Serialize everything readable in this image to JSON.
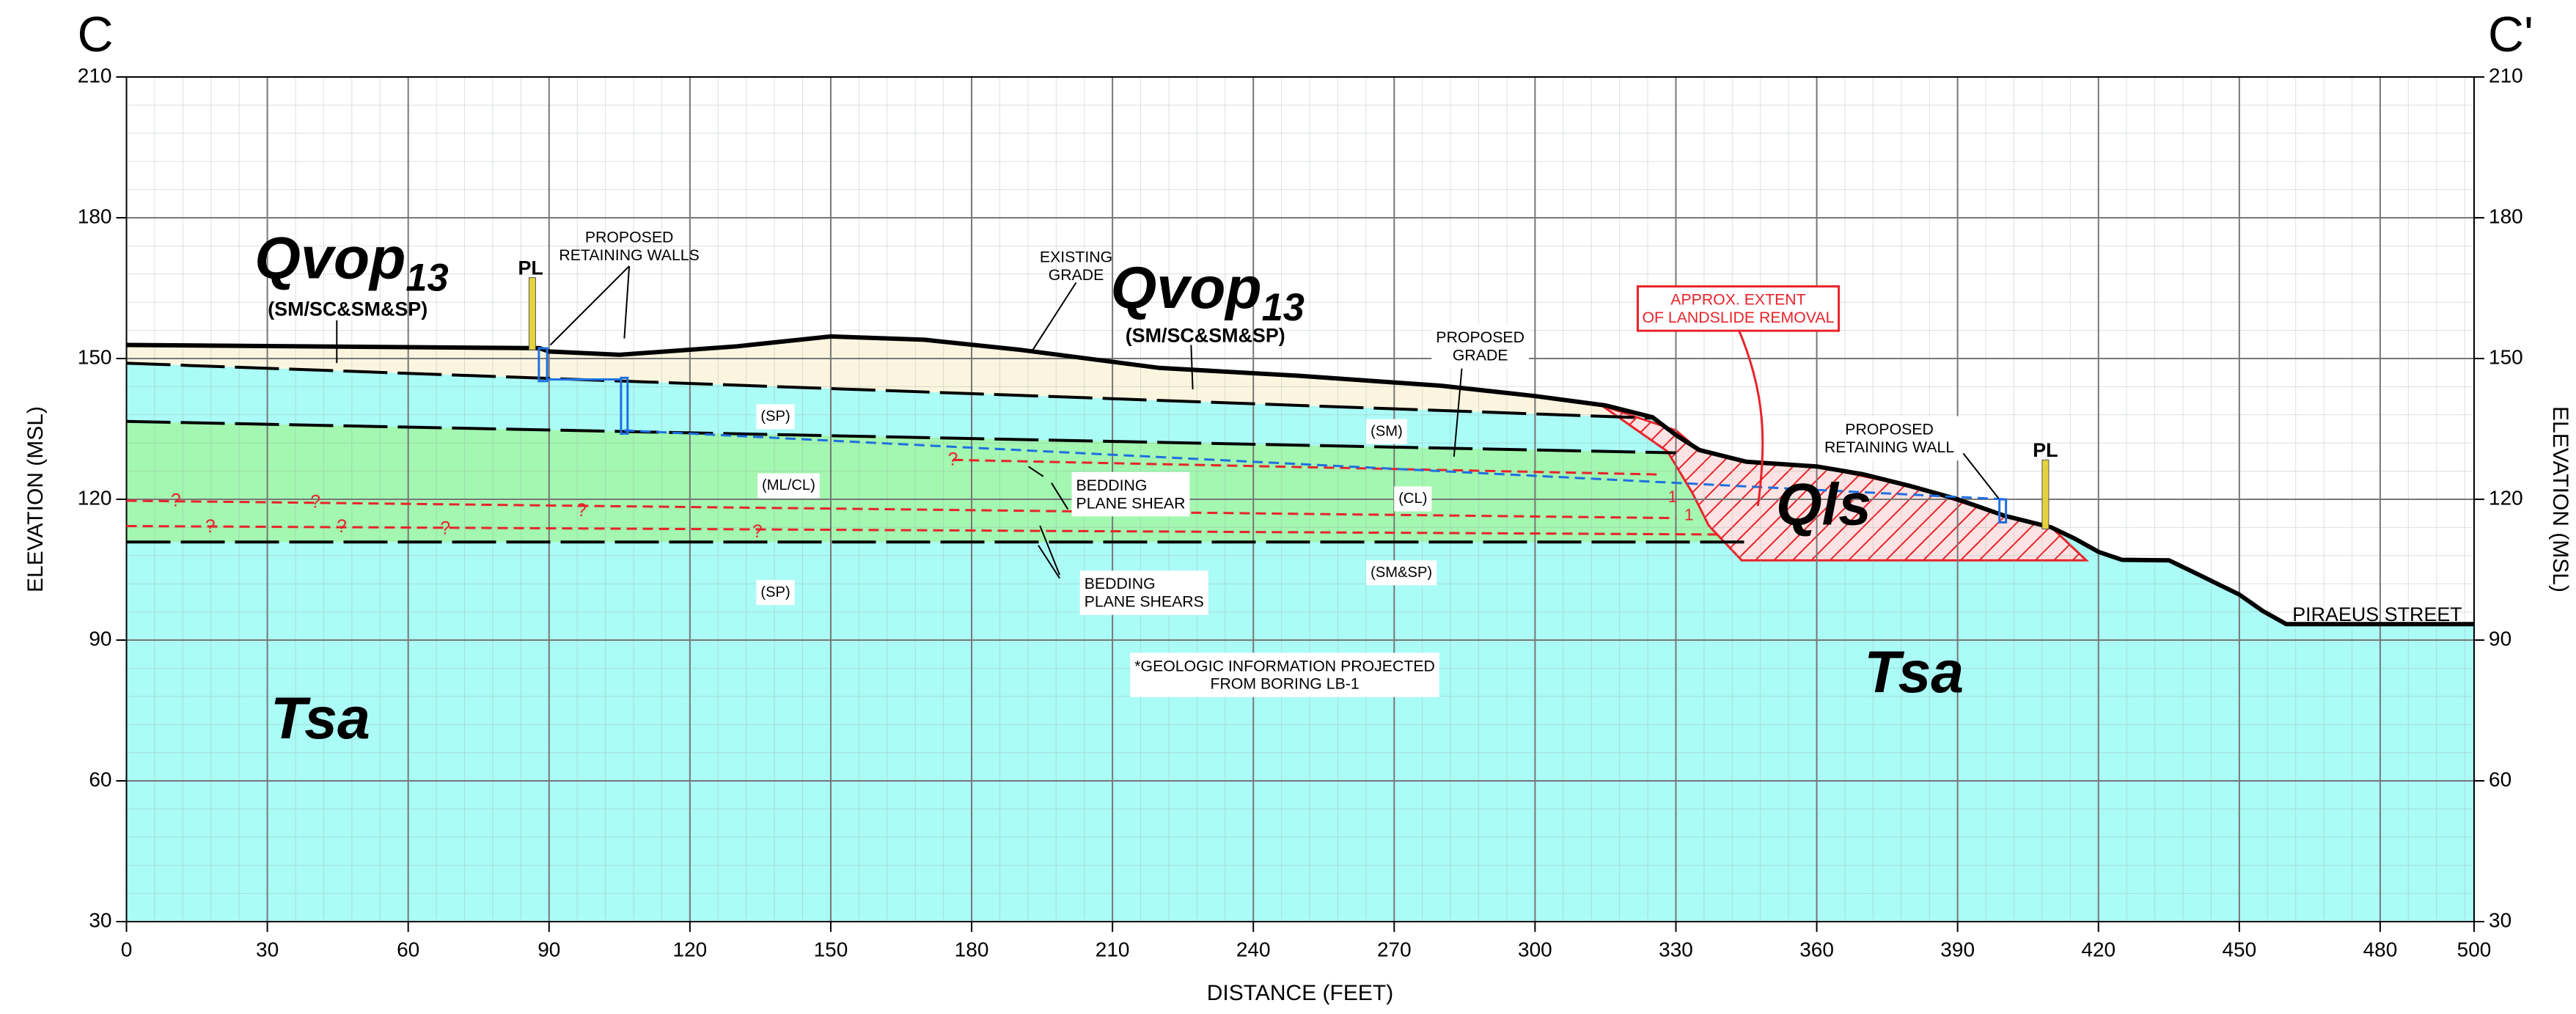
{
  "chart_data": {
    "type": "cross-section",
    "title_left": "C",
    "title_right": "C'",
    "xlabel": "DISTANCE (FEET)",
    "ylabel": "ELEVATION (MSL)",
    "xlim": [
      0,
      500
    ],
    "ylim": [
      30,
      210
    ],
    "xticks": [
      0,
      30,
      60,
      90,
      120,
      150,
      180,
      210,
      240,
      270,
      300,
      330,
      360,
      390,
      420,
      450,
      480,
      500
    ],
    "yticks": [
      30,
      60,
      90,
      120,
      150,
      180,
      210
    ],
    "grid": true,
    "ground_fill": "#abfbf6",
    "polygons": [
      {
        "color": "#fbf5df",
        "x": [
          0,
          88,
          90,
          105,
          130,
          150,
          170,
          190,
          220,
          250,
          280,
          300,
          315,
          325,
          325,
          0
        ],
        "values": [
          152.9,
          152.2,
          151.5,
          150.8,
          152.6,
          154.7,
          154,
          151.9,
          148,
          146.3,
          144.2,
          142,
          140,
          137.5,
          137.3,
          149
        ]
      },
      {
        "color": "#a3f7b0",
        "x": [
          0,
          330,
          345,
          0
        ],
        "values": [
          136.6,
          129.9,
          110.9,
          110.9
        ]
      },
      {
        "color": "#e8232a",
        "hatch": true,
        "x": [
          314.2,
          330,
          334.9,
          345,
          360,
          380,
          400,
          410,
          417.4,
          344,
          337,
          333.5,
          328.2
        ],
        "values": [
          140,
          134.7,
          130.5,
          128,
          127,
          122.8,
          116.5,
          114,
          107,
          107,
          114.4,
          121.4,
          130.2
        ]
      }
    ],
    "series": [
      {
        "color": "#000000",
        "style": "solid",
        "x": [
          0,
          88,
          90,
          105,
          130,
          150,
          170,
          190,
          220,
          250,
          280,
          300,
          315,
          325,
          330,
          335,
          345,
          360,
          370,
          380,
          390,
          400,
          410,
          415,
          420,
          425,
          435,
          440,
          450,
          455,
          460,
          500
        ],
        "values": [
          152.9,
          152.2,
          151.5,
          150.8,
          152.6,
          154.7,
          154,
          151.9,
          148,
          146.3,
          144.2,
          142,
          140,
          137.5,
          133.7,
          130.5,
          128,
          127,
          125.3,
          122.8,
          120,
          116.5,
          114,
          111.6,
          108.8,
          107.1,
          107,
          104.6,
          99.7,
          96.2,
          93.4,
          93.4
        ]
      },
      {
        "color": "#000000",
        "style": "dashed",
        "x": [
          0,
          325
        ],
        "values": [
          149,
          137.3
        ]
      },
      {
        "color": "#000000",
        "style": "dashed",
        "x": [
          0,
          330
        ],
        "values": [
          136.6,
          129.9
        ]
      },
      {
        "color": "#000000",
        "style": "dashed",
        "x": [
          0,
          345
        ],
        "values": [
          110.9,
          110.9
        ]
      },
      {
        "color": "#e8232a",
        "style": "dashed",
        "x": [
          0,
          330
        ],
        "values": [
          119.7,
          116
        ]
      },
      {
        "color": "#e8232a",
        "style": "dashed",
        "x": [
          0,
          340
        ],
        "values": [
          114.3,
          112.5
        ]
      },
      {
        "color": "#e8232a",
        "style": "dashed",
        "x": [
          176,
          326
        ],
        "values": [
          128.4,
          125.3
        ]
      },
      {
        "color": "#1e6fe0",
        "style": "dashed",
        "x": [
          106,
          400
        ],
        "values": [
          134.7,
          120
        ]
      }
    ],
    "annotations": [
      {
        "text": "Qvop",
        "sub": "13"
      },
      {
        "text": "(SM/SC&SM&SP)"
      },
      {
        "text": "Qvop",
        "sub": "13"
      },
      {
        "text": "(SM/SC&SM&SP)"
      },
      {
        "text": "PL"
      },
      {
        "text": "PL"
      },
      {
        "lines": [
          "PROPOSED",
          "RETAINING WALLS"
        ]
      },
      {
        "lines": [
          "EXISTING",
          "GRADE"
        ]
      },
      {
        "lines": [
          "PROPOSED",
          "GRADE"
        ]
      },
      {
        "lines": [
          "APPROX. EXTENT",
          "OF LANDSLIDE REMOVAL"
        ]
      },
      {
        "lines": [
          "PROPOSED",
          "RETAINING WALL"
        ]
      },
      {
        "text": "Qls"
      },
      {
        "text": "Tsa"
      },
      {
        "text": "Tsa"
      },
      {
        "text": "(SP)"
      },
      {
        "text": "(ML/CL)"
      },
      {
        "text": "(SP)"
      },
      {
        "text": "(SM)"
      },
      {
        "text": "(CL)"
      },
      {
        "text": "(SM&SP)"
      },
      {
        "lines": [
          "BEDDING",
          "PLANE SHEAR"
        ]
      },
      {
        "lines": [
          "BEDDING",
          "PLANE SHEARS"
        ]
      },
      {
        "lines": [
          "*GEOLOGIC INFORMATION PROJECTED",
          "FROM BORING LB-1"
        ]
      },
      {
        "text": "PIRAEUS STREET"
      },
      {
        "text": "?"
      },
      {
        "text": "?"
      },
      {
        "text": "?"
      },
      {
        "text": "?"
      },
      {
        "text": "?"
      },
      {
        "text": "?"
      },
      {
        "text": "?"
      },
      {
        "text": "?"
      },
      {
        "text": "1"
      },
      {
        "text": "1"
      }
    ]
  }
}
